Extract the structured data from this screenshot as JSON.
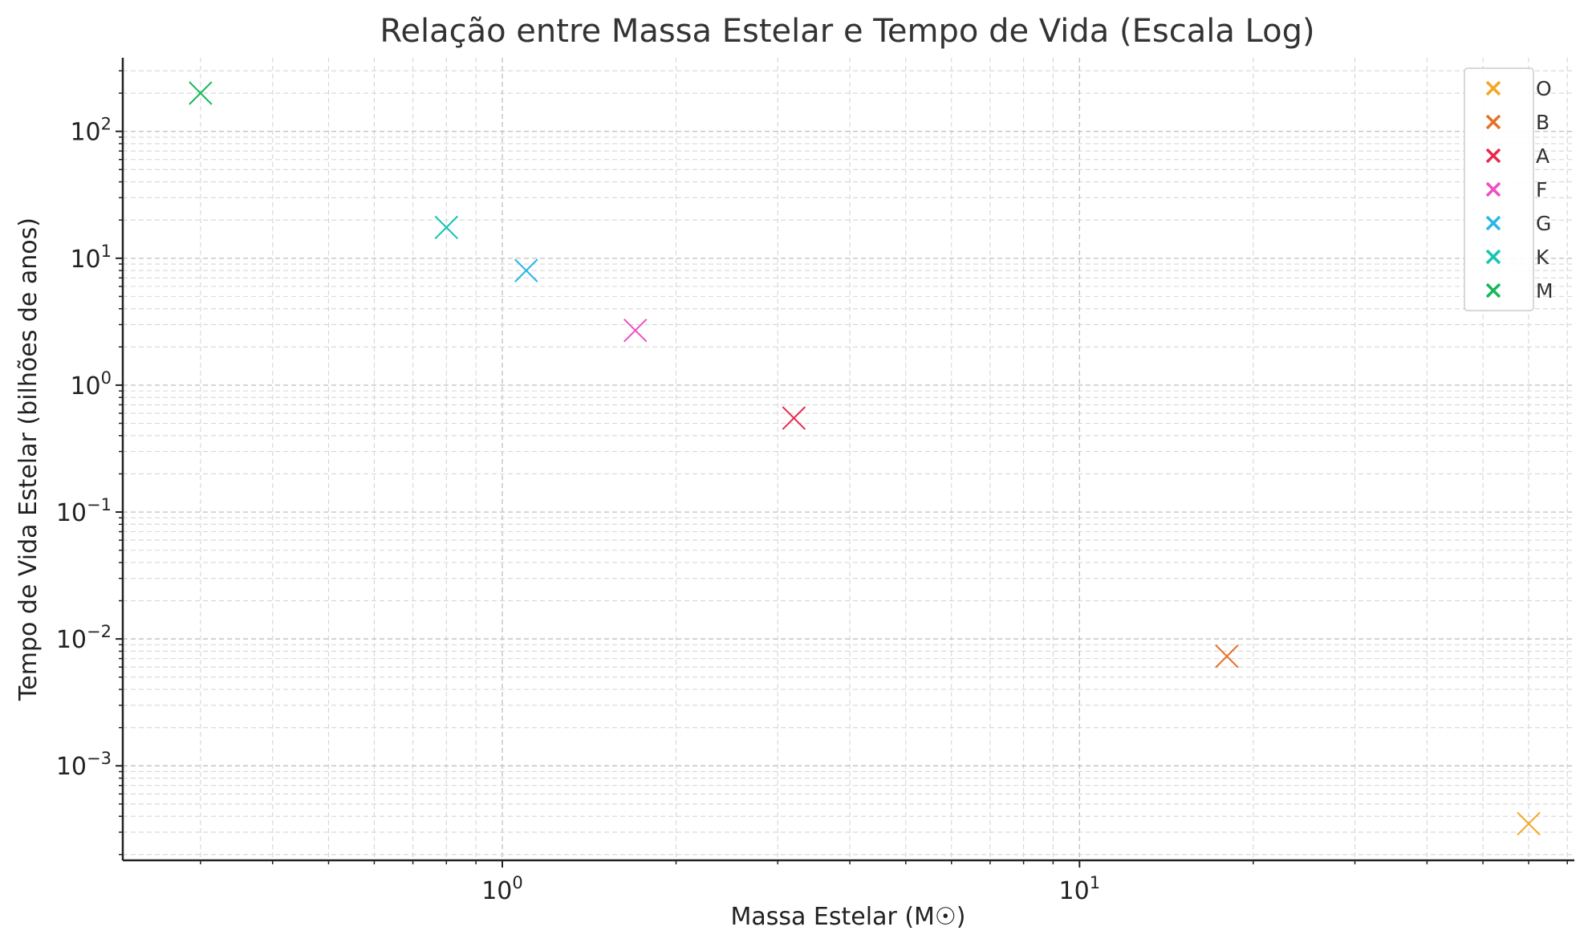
{
  "chart_data": {
    "type": "scatter",
    "title": "Relação entre Massa Estelar e Tempo de Vida (Escala Log)",
    "xlabel": "Massa Estelar (M☉)",
    "ylabel": "Tempo de Vida Estelar (bilhões de anos)",
    "xscale": "log",
    "yscale": "log",
    "xlim": [
      0.22,
      72
    ],
    "ylim": [
      0.00018,
      380
    ],
    "grid": true,
    "legend_position": "top-right",
    "x_ticks": [
      {
        "base": "10",
        "exp": "0",
        "value": 1
      },
      {
        "base": "10",
        "exp": "1",
        "value": 10
      }
    ],
    "y_ticks": [
      {
        "base": "10",
        "exp": "−3",
        "value": 0.001
      },
      {
        "base": "10",
        "exp": "−2",
        "value": 0.01
      },
      {
        "base": "10",
        "exp": "−1",
        "value": 0.1
      },
      {
        "base": "10",
        "exp": "0",
        "value": 1
      },
      {
        "base": "10",
        "exp": "1",
        "value": 10
      },
      {
        "base": "10",
        "exp": "2",
        "value": 100
      }
    ],
    "marker": "x",
    "series": [
      {
        "name": "O",
        "color": "#f5a623",
        "x": 60,
        "y": 0.00035
      },
      {
        "name": "B",
        "color": "#e8702a",
        "x": 18,
        "y": 0.0073
      },
      {
        "name": "A",
        "color": "#e8294d",
        "x": 3.2,
        "y": 0.55
      },
      {
        "name": "F",
        "color": "#f04fbf",
        "x": 1.7,
        "y": 2.7
      },
      {
        "name": "G",
        "color": "#29b6e8",
        "x": 1.1,
        "y": 8
      },
      {
        "name": "K",
        "color": "#17c4b3",
        "x": 0.8,
        "y": 17.5
      },
      {
        "name": "M",
        "color": "#16b85a",
        "x": 0.3,
        "y": 200
      }
    ]
  }
}
